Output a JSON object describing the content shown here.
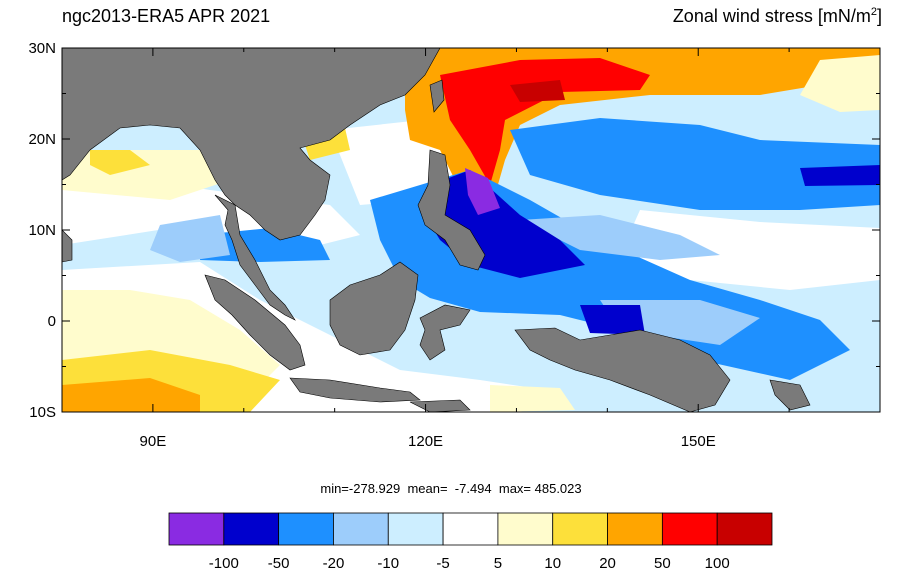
{
  "title": {
    "left": "ngc2013-ERA5  APR 2021",
    "right_main": "Zonal wind stress [mN/m",
    "right_sup": "2",
    "right_end": "]"
  },
  "axes": {
    "lat_ticks": [
      "30N",
      "20N",
      "10N",
      "0",
      "10S"
    ],
    "lon_ticks": [
      "90E",
      "120E",
      "150E"
    ]
  },
  "stats": {
    "text": "min=-278.929  mean=  -7.494  max= 485.023"
  },
  "colorbar": {
    "colors": [
      "#8a2be2",
      "#0000cd",
      "#1e90ff",
      "#9dcdfb",
      "#cdeeff",
      "#ffffff",
      "#fffccd",
      "#fde03a",
      "#ffa500",
      "#ff0000",
      "#c80000"
    ],
    "labels": [
      "-100",
      "-50",
      "-20",
      "-10",
      "-5",
      "5",
      "10",
      "20",
      "50",
      "100"
    ]
  },
  "colors": {
    "land": "#7a7a7a",
    "ocean_background": "#cdeeff"
  }
}
